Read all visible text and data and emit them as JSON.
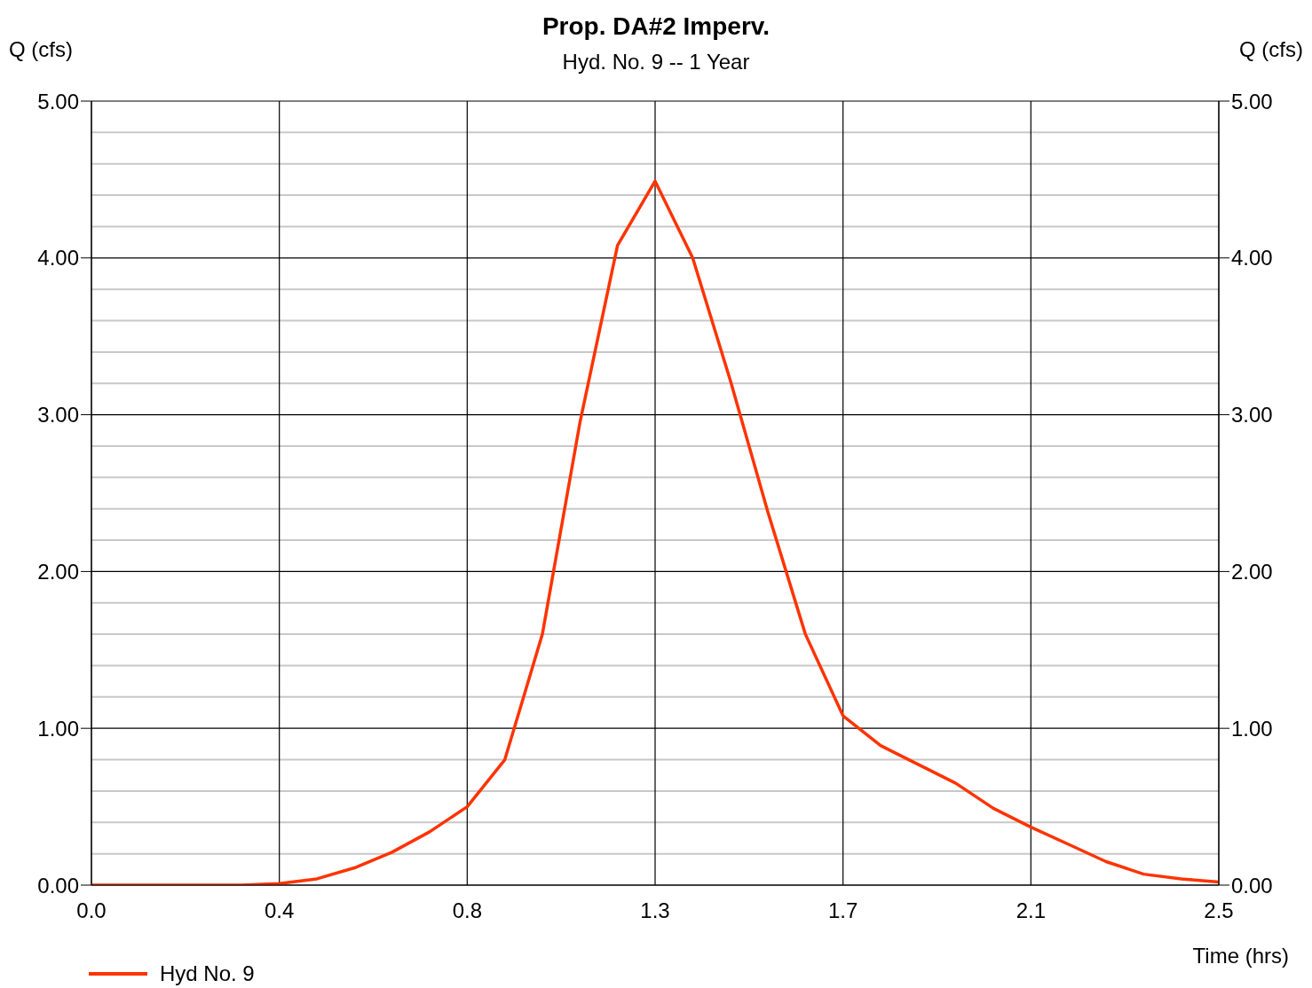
{
  "chart_data": {
    "type": "line",
    "title": "Prop. DA#2 Imperv.",
    "subtitle": "Hyd. No. 9 -- 1 Year",
    "xlabel": "Time (hrs)",
    "ylabel": "Q (cfs)",
    "y2label": "Q (cfs)",
    "x": [
      0,
      0.0833,
      0.1667,
      0.25,
      0.3333,
      0.4167,
      0.5,
      0.5833,
      0.6667,
      0.75,
      0.8333,
      0.9167,
      1.0,
      1.0833,
      1.1667,
      1.25,
      1.3333,
      1.4167,
      1.5,
      1.5833,
      1.6667,
      1.75,
      1.8333,
      1.9167,
      2.0,
      2.0833,
      2.1667,
      2.25,
      2.3333,
      2.4167,
      2.5
    ],
    "series": [
      {
        "name": "Hyd No. 9",
        "color": "#ff3300",
        "values": [
          0,
          0,
          0,
          0,
          0,
          0.01,
          0.04,
          0.11,
          0.21,
          0.34,
          0.5,
          0.8,
          1.6,
          2.95,
          4.08,
          4.49,
          4.0,
          3.22,
          2.38,
          1.6,
          1.08,
          0.89,
          0.77,
          0.65,
          0.49,
          0.37,
          0.26,
          0.15,
          0.07,
          0.04,
          0.02
        ]
      }
    ],
    "xlim": [
      0,
      2.5
    ],
    "xticks": [
      {
        "value": 0,
        "label": "0.0"
      },
      {
        "value": 0.4167,
        "label": "0.4"
      },
      {
        "value": 0.8333,
        "label": "0.8"
      },
      {
        "value": 1.25,
        "label": "1.3"
      },
      {
        "value": 1.6667,
        "label": "1.7"
      },
      {
        "value": 2.0833,
        "label": "2.1"
      },
      {
        "value": 2.5,
        "label": "2.5"
      }
    ],
    "ylim": [
      0,
      5
    ],
    "yticks": [
      {
        "value": 0,
        "label": "0.00"
      },
      {
        "value": 0.2,
        "label": null
      },
      {
        "value": 0.4,
        "label": null
      },
      {
        "value": 0.6,
        "label": null
      },
      {
        "value": 0.8,
        "label": null
      },
      {
        "value": 1,
        "label": "1.00"
      },
      {
        "value": 1.2,
        "label": null
      },
      {
        "value": 1.4,
        "label": null
      },
      {
        "value": 1.6,
        "label": null
      },
      {
        "value": 1.8,
        "label": null
      },
      {
        "value": 2,
        "label": "2.00"
      },
      {
        "value": 2.2,
        "label": null
      },
      {
        "value": 2.4,
        "label": null
      },
      {
        "value": 2.6,
        "label": null
      },
      {
        "value": 2.8,
        "label": null
      },
      {
        "value": 3,
        "label": "3.00"
      },
      {
        "value": 3.2,
        "label": null
      },
      {
        "value": 3.4,
        "label": null
      },
      {
        "value": 3.6,
        "label": null
      },
      {
        "value": 3.8,
        "label": null
      },
      {
        "value": 4,
        "label": "4.00"
      },
      {
        "value": 4.2,
        "label": null
      },
      {
        "value": 4.4,
        "label": null
      },
      {
        "value": 4.6,
        "label": null
      },
      {
        "value": 4.8,
        "label": null
      },
      {
        "value": 5,
        "label": "5.00"
      }
    ],
    "y2lim": [
      0,
      5
    ],
    "y2ticks": [
      {
        "value": 0,
        "label": "0.00"
      },
      {
        "value": 1,
        "label": "1.00"
      },
      {
        "value": 2,
        "label": "2.00"
      },
      {
        "value": 3,
        "label": "3.00"
      },
      {
        "value": 4,
        "label": "4.00"
      },
      {
        "value": 5,
        "label": "5.00"
      }
    ],
    "grid": true,
    "legend": "bottom left",
    "marker": "none",
    "line_style": "solid"
  }
}
